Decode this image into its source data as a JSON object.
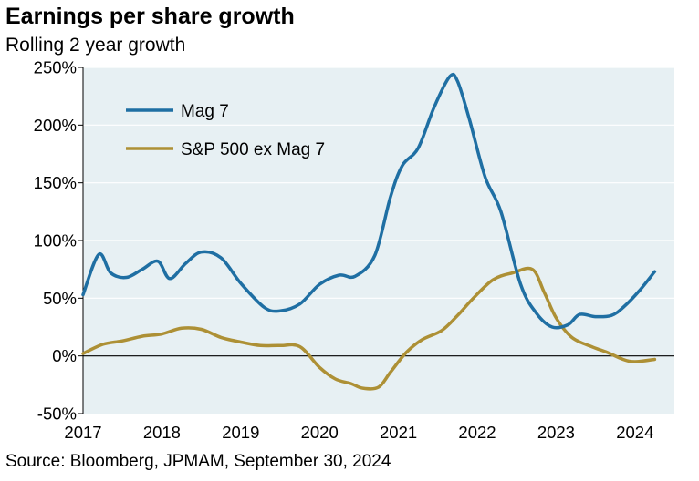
{
  "title": "Earnings per share growth",
  "subtitle": "Rolling 2 year growth",
  "source": "Source: Bloomberg, JPMAM, September 30, 2024",
  "colors": {
    "plot_background": "#e7f0f3",
    "gridline": "#ffffff",
    "zero_line": "#000000"
  },
  "chart_data": {
    "type": "line",
    "title": "Earnings per share growth",
    "subtitle": "Rolling 2 year growth",
    "xlabel": "",
    "ylabel": "",
    "xlim": [
      2017,
      2024.5
    ],
    "ylim": [
      -50,
      250
    ],
    "y_ticks": [
      -50,
      0,
      50,
      100,
      150,
      200,
      250
    ],
    "y_tick_labels": [
      "-50%",
      "0%",
      "50%",
      "100%",
      "150%",
      "200%",
      "250%"
    ],
    "x_ticks": [
      2017,
      2018,
      2019,
      2020,
      2021,
      2022,
      2023,
      2024
    ],
    "x_tick_labels": [
      "2017",
      "2018",
      "2019",
      "2020",
      "2021",
      "2022",
      "2023",
      "2024"
    ],
    "grid": "horizontal",
    "legend_position": "top-left",
    "series": [
      {
        "name": "Mag 7",
        "color": "#1f6fa3",
        "x": [
          2017.0,
          2017.2,
          2017.35,
          2017.55,
          2017.75,
          2017.95,
          2018.1,
          2018.3,
          2018.5,
          2018.75,
          2019.0,
          2019.3,
          2019.5,
          2019.75,
          2020.0,
          2020.25,
          2020.45,
          2020.7,
          2020.9,
          2021.05,
          2021.25,
          2021.45,
          2021.65,
          2021.75,
          2021.9,
          2022.1,
          2022.3,
          2022.55,
          2022.75,
          2022.95,
          2023.15,
          2023.3,
          2023.5,
          2023.7,
          2023.85,
          2024.05,
          2024.25
        ],
        "values": [
          53,
          88,
          72,
          68,
          75,
          82,
          67,
          80,
          90,
          85,
          63,
          42,
          39,
          45,
          62,
          70,
          69,
          87,
          138,
          165,
          180,
          215,
          242,
          238,
          205,
          155,
          125,
          62,
          37,
          25,
          27,
          36,
          34,
          35,
          42,
          56,
          73
        ]
      },
      {
        "name": "S&P 500 ex Mag 7",
        "color": "#ad9035",
        "x": [
          2017.0,
          2017.25,
          2017.5,
          2017.75,
          2018.0,
          2018.25,
          2018.5,
          2018.75,
          2019.0,
          2019.25,
          2019.5,
          2019.75,
          2020.0,
          2020.2,
          2020.4,
          2020.55,
          2020.75,
          2020.9,
          2021.1,
          2021.3,
          2021.55,
          2021.75,
          2021.95,
          2022.2,
          2022.45,
          2022.7,
          2022.85,
          2023.0,
          2023.2,
          2023.45,
          2023.65,
          2023.85,
          2024.0,
          2024.25
        ],
        "values": [
          2,
          10,
          13,
          17,
          19,
          24,
          23,
          16,
          12,
          9,
          9,
          8,
          -10,
          -20,
          -24,
          -28,
          -27,
          -14,
          3,
          14,
          22,
          35,
          50,
          66,
          72,
          75,
          55,
          33,
          16,
          8,
          3,
          -3,
          -5,
          -3
        ]
      }
    ]
  }
}
